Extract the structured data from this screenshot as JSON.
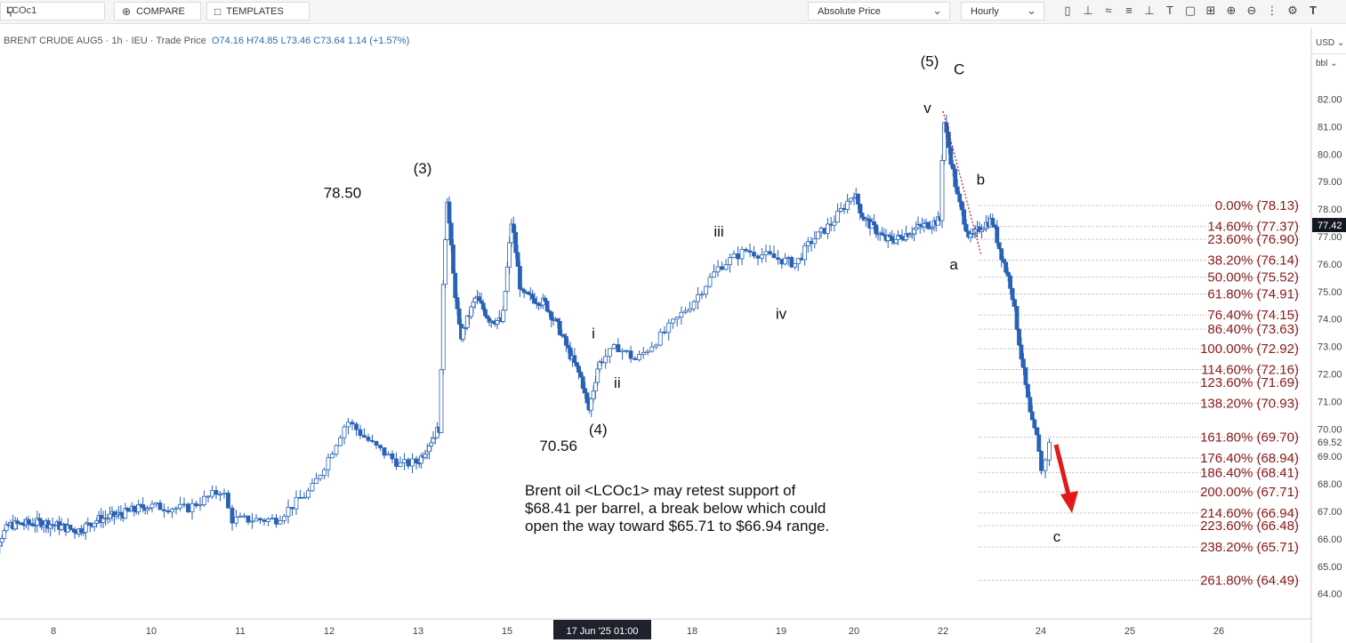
{
  "toolbar": {
    "symbol": "LCOc1",
    "compare_label": "COMPARE",
    "templates_label": "TEMPLATES",
    "price_type": "Absolute Price",
    "interval": "Hourly"
  },
  "legend": {
    "instrument": "BRENT CRUDE AUG5 · 1h · IEU · Trade Price",
    "ohlc": "O74.16  H74.85  L73.46  C73.64  1.14 (+1.57%)"
  },
  "axis_side": {
    "currency": "USD",
    "unit": "bbl"
  },
  "annotation": {
    "text": "Brent oil <LCOc1> may retest support of\n$68.41 per barrel, a break below which could\nopen the way toward $65.71 to $66.94 range."
  },
  "colors": {
    "up_candle": "#ffffff",
    "down_candle": "#2962b5",
    "fib_text": "#8b1a1a",
    "arrow": "#e01a1a"
  },
  "chart_data": {
    "type": "candlestick",
    "y_axis": {
      "ylim": [
        63.8,
        83.2
      ],
      "ticks": [
        64,
        65,
        66,
        67,
        68,
        69,
        70,
        71,
        72,
        73,
        74,
        75,
        76,
        77,
        78,
        79,
        80,
        81,
        82
      ]
    },
    "x_axis": {
      "ticks": [
        {
          "label": "8",
          "day": 8
        },
        {
          "label": "10",
          "day": 10
        },
        {
          "label": "11",
          "day": 11
        },
        {
          "label": "12",
          "day": 12
        },
        {
          "label": "13",
          "day": 13
        },
        {
          "label": "15",
          "day": 15
        },
        {
          "label": "18",
          "day": 18
        },
        {
          "label": "19",
          "day": 19
        },
        {
          "label": "20",
          "day": 20
        },
        {
          "label": "22",
          "day": 22
        },
        {
          "label": "24",
          "day": 24
        },
        {
          "label": "25",
          "day": 25
        },
        {
          "label": "26",
          "day": 26
        }
      ],
      "crosshair_label": "17 Jun '25  01:00"
    },
    "price_path": [
      [
        6.5,
        65.0
      ],
      [
        7.1,
        66.5
      ],
      [
        7.8,
        66.6
      ],
      [
        8.5,
        66.3
      ],
      [
        8.9,
        66.7
      ],
      [
        9.4,
        66.9
      ],
      [
        9.9,
        67.2
      ],
      [
        10.4,
        67.1
      ],
      [
        10.8,
        67.8
      ],
      [
        10.9,
        66.7
      ],
      [
        11.4,
        66.7
      ],
      [
        11.8,
        67.8
      ],
      [
        12.0,
        69.0
      ],
      [
        12.2,
        70.3
      ],
      [
        12.5,
        69.4
      ],
      [
        12.8,
        68.7
      ],
      [
        13.0,
        68.8
      ],
      [
        13.3,
        69.6
      ],
      [
        13.5,
        70.1
      ],
      [
        13.55,
        74.8
      ],
      [
        13.65,
        78.5
      ],
      [
        13.8,
        75.4
      ],
      [
        13.95,
        73.3
      ],
      [
        14.3,
        74.8
      ],
      [
        14.6,
        74.0
      ],
      [
        14.9,
        73.9
      ],
      [
        15.1,
        77.6
      ],
      [
        15.3,
        74.9
      ],
      [
        15.8,
        74.6
      ],
      [
        16.1,
        73.7
      ],
      [
        16.35,
        72.7
      ],
      [
        16.6,
        71.8
      ],
      [
        16.75,
        70.6
      ],
      [
        16.95,
        72.3
      ],
      [
        17.2,
        73.0
      ],
      [
        17.4,
        72.5
      ],
      [
        17.7,
        73.5
      ],
      [
        18.0,
        74.6
      ],
      [
        18.3,
        75.9
      ],
      [
        18.6,
        76.5
      ],
      [
        18.95,
        76.2
      ],
      [
        19.2,
        76.0
      ],
      [
        19.4,
        76.8
      ],
      [
        19.7,
        77.5
      ],
      [
        20.0,
        78.6
      ],
      [
        20.2,
        77.7
      ],
      [
        20.45,
        77.3
      ],
      [
        20.7,
        76.9
      ],
      [
        20.95,
        76.9
      ],
      [
        21.4,
        77.3
      ],
      [
        21.95,
        77.6
      ],
      [
        22.0,
        81.4
      ],
      [
        22.3,
        78.4
      ],
      [
        22.55,
        76.9
      ],
      [
        22.8,
        77.4
      ],
      [
        23.0,
        77.6
      ],
      [
        23.15,
        76.6
      ],
      [
        23.4,
        75.1
      ],
      [
        23.65,
        72.0
      ],
      [
        23.8,
        70.3
      ],
      [
        23.95,
        69.5
      ],
      [
        24.0,
        68.4
      ],
      [
        24.1,
        69.5
      ]
    ],
    "fib_levels": [
      {
        "pct": "0.00%",
        "price": 78.13
      },
      {
        "pct": "14.60%",
        "price": 77.37
      },
      {
        "pct": "23.60%",
        "price": 76.9
      },
      {
        "pct": "38.20%",
        "price": 76.14
      },
      {
        "pct": "50.00%",
        "price": 75.52
      },
      {
        "pct": "61.80%",
        "price": 74.91
      },
      {
        "pct": "76.40%",
        "price": 74.15
      },
      {
        "pct": "86.40%",
        "price": 73.63
      },
      {
        "pct": "100.00%",
        "price": 72.92
      },
      {
        "pct": "114.60%",
        "price": 72.16
      },
      {
        "pct": "123.60%",
        "price": 71.69
      },
      {
        "pct": "138.20%",
        "price": 70.93
      },
      {
        "pct": "161.80%",
        "price": 69.7
      },
      {
        "pct": "176.40%",
        "price": 68.94
      },
      {
        "pct": "186.40%",
        "price": 68.41
      },
      {
        "pct": "200.00%",
        "price": 67.71
      },
      {
        "pct": "214.60%",
        "price": 66.94
      },
      {
        "pct": "223.60%",
        "price": 66.48
      },
      {
        "pct": "238.20%",
        "price": 65.71
      },
      {
        "pct": "261.80%",
        "price": 64.49
      }
    ],
    "price_labels": [
      {
        "text": "77.42",
        "price": 77.42,
        "style": "current"
      },
      {
        "text": "69.52",
        "price": 69.52,
        "style": "plain"
      }
    ],
    "wave_labels": [
      {
        "text": "(3)",
        "day": 13.1,
        "price": 79.3
      },
      {
        "text": "78.50",
        "day": 12.15,
        "price": 78.4
      },
      {
        "text": "(4)",
        "day": 16.95,
        "price": 69.8
      },
      {
        "text": "70.56",
        "day": 16.1,
        "price": 69.2
      },
      {
        "text": "i",
        "day": 16.85,
        "price": 73.3
      },
      {
        "text": "ii",
        "day": 17.2,
        "price": 71.5
      },
      {
        "text": "iii",
        "day": 18.3,
        "price": 77.0
      },
      {
        "text": "iv",
        "day": 19.0,
        "price": 74.0
      },
      {
        "text": "v",
        "day": 21.65,
        "price": 81.5
      },
      {
        "text": "(5)",
        "day": 21.7,
        "price": 83.2
      },
      {
        "text": "C",
        "day": 22.33,
        "price": 82.9
      },
      {
        "text": "a",
        "day": 22.22,
        "price": 75.8
      },
      {
        "text": "b",
        "day": 22.77,
        "price": 78.9
      },
      {
        "text": "c",
        "day": 24.18,
        "price": 65.9
      }
    ]
  }
}
